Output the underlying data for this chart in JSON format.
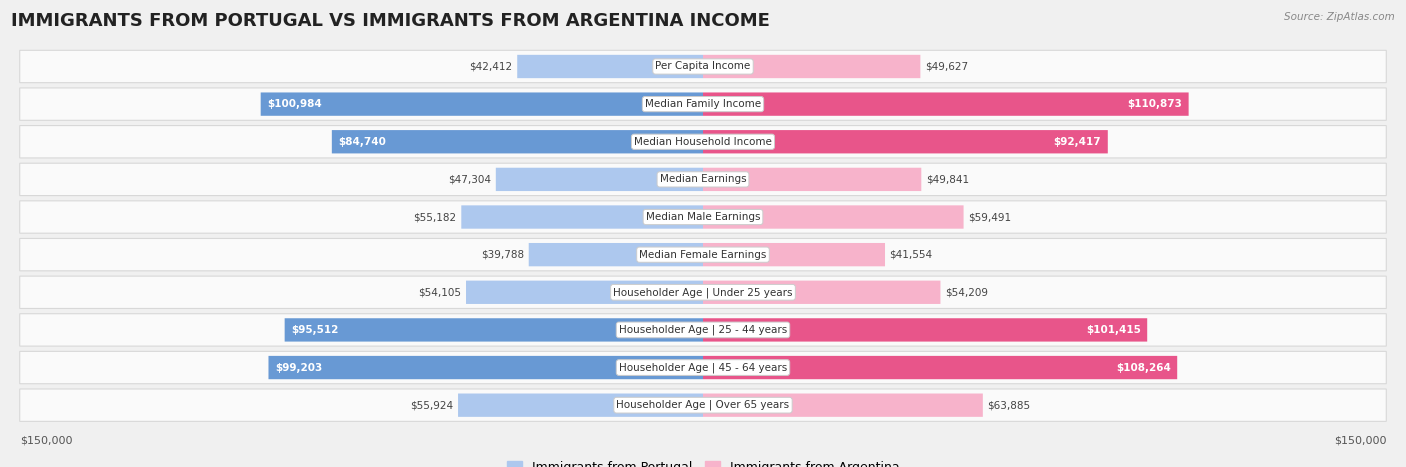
{
  "title": "IMMIGRANTS FROM PORTUGAL VS IMMIGRANTS FROM ARGENTINA INCOME",
  "source": "Source: ZipAtlas.com",
  "categories": [
    "Per Capita Income",
    "Median Family Income",
    "Median Household Income",
    "Median Earnings",
    "Median Male Earnings",
    "Median Female Earnings",
    "Householder Age | Under 25 years",
    "Householder Age | 25 - 44 years",
    "Householder Age | 45 - 64 years",
    "Householder Age | Over 65 years"
  ],
  "portugal_values": [
    42412,
    100984,
    84740,
    47304,
    55182,
    39788,
    54105,
    95512,
    99203,
    55924
  ],
  "argentina_values": [
    49627,
    110873,
    92417,
    49841,
    59491,
    41554,
    54209,
    101415,
    108264,
    63885
  ],
  "portugal_color_light": "#adc8ee",
  "portugal_color_dark": "#6899d4",
  "argentina_color_light": "#f7b3cb",
  "argentina_color_dark": "#e8558a",
  "threshold": 75000,
  "max_value": 150000,
  "portugal_legend": "Immigrants from Portugal",
  "argentina_legend": "Immigrants from Argentina",
  "background_color": "#f0f0f0",
  "row_bg": "#fafafa",
  "title_fontsize": 13,
  "category_fontsize": 7.5,
  "value_fontsize": 7.5,
  "legend_fontsize": 9,
  "axis_fontsize": 8
}
